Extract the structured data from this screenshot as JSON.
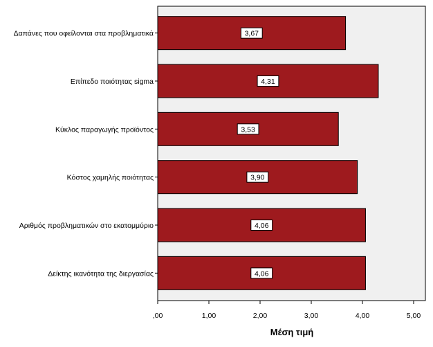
{
  "chart_data": {
    "type": "bar",
    "orientation": "horizontal",
    "categories": [
      "Δαπάνες που οφείλονται στα προβληματικά",
      "Επίπεδο ποιότητας sigma",
      "Κύκλος παραγωγής προϊόντος",
      "Κόστος χαμηλής ποιότητας",
      "Αριθμός προβληματικών στο εκατομμύριο",
      "Δείκτης ικανότητα της διεργασίας"
    ],
    "values": [
      3.67,
      4.31,
      3.53,
      3.9,
      4.06,
      4.06
    ],
    "value_labels": [
      "3,67",
      "4,31",
      "3,53",
      "3,90",
      "4,06",
      "4,06"
    ],
    "xlabel": "Μέση τιμή",
    "ylabel": "",
    "xlim": [
      0,
      5
    ],
    "xticks": [
      ",00",
      "1,00",
      "2,00",
      "3,00",
      "4,00",
      "5,00"
    ],
    "grid": false,
    "bar_color": "#9e1a1e",
    "plot_background": "#f0f0f0"
  }
}
